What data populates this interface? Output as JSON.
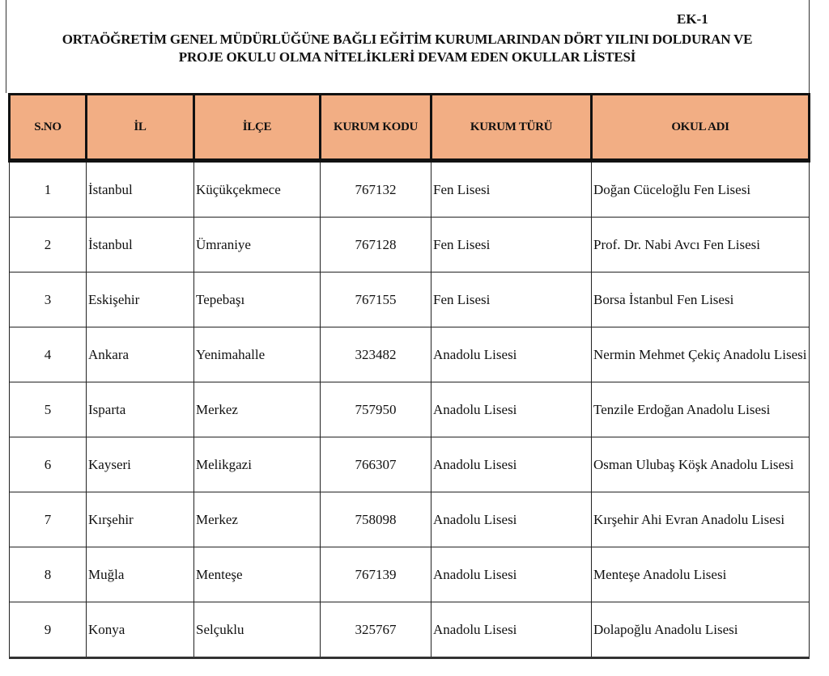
{
  "document": {
    "annex_label": "EK-1",
    "title_line1": "ORTAÖĞRETİM GENEL MÜDÜRLÜĞÜNE BAĞLI EĞİTİM KURUMLARINDAN DÖRT YILINI DOLDURAN VE",
    "title_line2": "PROJE OKULU OLMA NİTELİKLERİ DEVAM EDEN  OKULLAR LİSTESİ",
    "header_color": "#f2ae84",
    "columns": [
      "S.NO",
      "İL",
      "İLÇE",
      "KURUM KODU",
      "KURUM TÜRÜ",
      "OKUL ADI"
    ],
    "rows": [
      [
        "1",
        "İstanbul",
        "Küçükçekmece",
        "767132",
        "Fen Lisesi",
        "Doğan Cüceloğlu Fen Lisesi"
      ],
      [
        "2",
        "İstanbul",
        "Ümraniye",
        "767128",
        "Fen Lisesi",
        "Prof. Dr. Nabi Avcı Fen Lisesi"
      ],
      [
        "3",
        "Eskişehir",
        "Tepebaşı",
        "767155",
        "Fen Lisesi",
        "Borsa İstanbul Fen Lisesi"
      ],
      [
        "4",
        "Ankara",
        "Yenimahalle",
        "323482",
        "Anadolu Lisesi",
        "Nermin Mehmet Çekiç Anadolu Lisesi"
      ],
      [
        "5",
        "Isparta",
        "Merkez",
        "757950",
        "Anadolu Lisesi",
        "Tenzile Erdoğan Anadolu Lisesi"
      ],
      [
        "6",
        "Kayseri",
        "Melikgazi",
        "766307",
        "Anadolu Lisesi",
        "Osman Ulubaş Köşk Anadolu Lisesi"
      ],
      [
        "7",
        "Kırşehir",
        "Merkez",
        "758098",
        "Anadolu Lisesi",
        "Kırşehir Ahi Evran Anadolu Lisesi"
      ],
      [
        "8",
        "Muğla",
        "Menteşe",
        "767139",
        "Anadolu Lisesi",
        "Menteşe Anadolu Lisesi"
      ],
      [
        "9",
        "Konya",
        "Selçuklu",
        "325767",
        "Anadolu Lisesi",
        "Dolapoğlu Anadolu Lisesi"
      ]
    ]
  }
}
